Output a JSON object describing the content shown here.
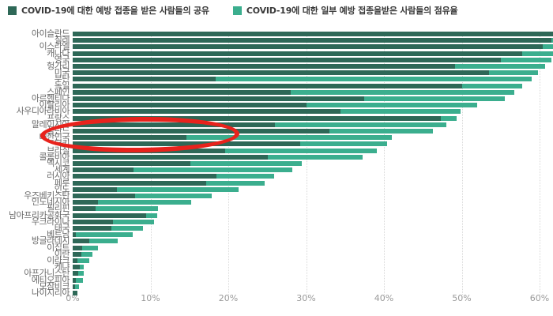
{
  "legend": {
    "items": [
      {
        "label": "COVID-19에 대한 예방 접종을 받은 사람들의 공유",
        "color": "#2e6857"
      },
      {
        "label": "COVID-19에 대한 일부 예방 접종을받은 사람들의 점유율",
        "color": "#3bae8e"
      }
    ]
  },
  "x_axis": {
    "tick_labels": [
      "0%",
      "10%",
      "20%",
      "30%",
      "40%",
      "50%",
      "60%"
    ],
    "tick_values": [
      0,
      10,
      20,
      30,
      40,
      50,
      60
    ]
  },
  "annotation": {
    "shape": "ellipse",
    "color": "#e8221c",
    "circled_country": "대한민국"
  },
  "colors": {
    "fully_vaccinated": "#2e6857",
    "partly_vaccinated": "#3bae8e",
    "gridline": "#d8d8d8",
    "tick_text": "#9a9a9a",
    "label_text": "#6b6b6b",
    "annotation_red": "#e8221c"
  },
  "chart_data": {
    "type": "bar",
    "orientation": "horizontal",
    "stacked": true,
    "title": "",
    "xlabel": "",
    "ylabel": "",
    "xlim": [
      0,
      61.7
    ],
    "grid": "dotted-vertical",
    "legend_position": "top-left",
    "categories": [
      "아이슬란드",
      "칠레",
      "이스라엘",
      "캐나다",
      "영국",
      "헝가리",
      "미국",
      "부탄",
      "독일",
      "스페인",
      "아르헨티나",
      "이탈리아",
      "사우디아라비아",
      "프랑스",
      "말레이시아",
      "폴란드",
      "대한민국",
      "터키",
      "브라질",
      "콜롬비아",
      "멕시코",
      "세계",
      "러시아",
      "페루",
      "인도",
      "우즈베키스탄",
      "인도네시아",
      "필리핀",
      "남아프리카공화국",
      "우크라이나",
      "태국",
      "베트남",
      "방글라데시",
      "이집트",
      "이란",
      "이라크",
      "케냐",
      "아프가니스탄",
      "에티오피아",
      "모잠비크",
      "나이지리아"
    ],
    "series": [
      {
        "name": "COVID-19에 대한 예방 접종을 받은 사람들의 공유",
        "color": "#2e6857",
        "values": [
          62.0,
          61.5,
          60.4,
          57.8,
          55.0,
          49.1,
          53.5,
          18.4,
          50.0,
          28.0,
          37.5,
          30.0,
          34.4,
          47.3,
          26.0,
          33.0,
          14.6,
          29.2,
          19.6,
          25.1,
          15.1,
          7.8,
          18.5,
          17.2,
          5.7,
          8.0,
          3.2,
          2.9,
          9.4,
          5.2,
          5.0,
          0.4,
          2.1,
          1.2,
          1.1,
          0.6,
          0.9,
          0.7,
          0.4,
          0.3,
          0.6
        ]
      },
      {
        "name": "COVID-19에 대한 일부 예방 접종을받은 사람들의 점유율",
        "color": "#3bae8e",
        "values": [
          0.0,
          0.5,
          1.6,
          4.2,
          6.5,
          11.6,
          6.3,
          40.6,
          7.8,
          28.8,
          18.0,
          22.0,
          15.4,
          2.0,
          22.0,
          13.3,
          26.4,
          11.2,
          19.5,
          12.2,
          14.3,
          20.4,
          7.4,
          7.5,
          15.6,
          9.9,
          12.0,
          8.1,
          1.5,
          5.3,
          4.0,
          7.3,
          3.7,
          2.0,
          1.4,
          1.5,
          0.5,
          0.7,
          0.9,
          0.5,
          0.0
        ]
      }
    ],
    "annotations": [
      "red ellipse circling the 대한민국 bar row"
    ]
  }
}
